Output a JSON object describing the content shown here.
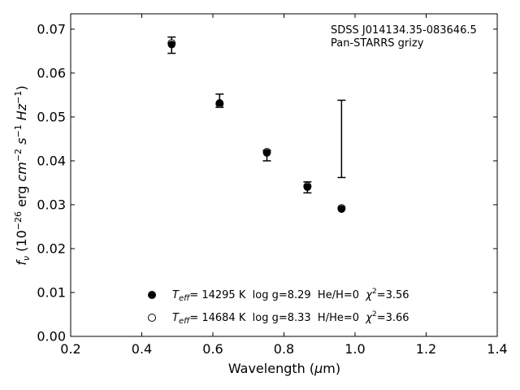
{
  "chart_data": {
    "type": "scatter",
    "title": "",
    "annotation": {
      "line1": "SDSS J014134.35-083646.5",
      "line2": "Pan-STARRS grizy"
    },
    "xlabel": "Wavelength (μm)",
    "ylabel": "f_ν (10^-26 erg cm^-2 s^-1 Hz^-1)",
    "xlim": [
      0.2,
      1.4
    ],
    "ylim": [
      0.0,
      0.0735
    ],
    "xticks": [
      "0.2",
      "0.4",
      "0.6",
      "0.8",
      "1.0",
      "1.2",
      "1.4"
    ],
    "yticks": [
      "0.00",
      "0.01",
      "0.02",
      "0.03",
      "0.04",
      "0.05",
      "0.06",
      "0.07"
    ],
    "observed": {
      "x": [
        0.484,
        0.619,
        0.752,
        0.866,
        0.962
      ],
      "y": [
        0.0663,
        0.0536,
        0.0412,
        0.034,
        0.045
      ],
      "yerr_low": [
        0.0645,
        0.0522,
        0.04,
        0.0327,
        0.0362
      ],
      "yerr_high": [
        0.0682,
        0.0552,
        0.0424,
        0.0352,
        0.0538
      ]
    },
    "series": [
      {
        "name": "He/H=0 model",
        "marker": "filled-circle",
        "color": "#000000",
        "x": [
          0.484,
          0.619,
          0.752,
          0.866,
          0.962
        ],
        "y": [
          0.0665,
          0.0532,
          0.0418,
          0.034,
          0.029
        ]
      },
      {
        "name": "H/He=0 model",
        "marker": "open-circle",
        "color": "#000000",
        "x": [
          0.484,
          0.619,
          0.752,
          0.866,
          0.962
        ],
        "y": [
          0.0668,
          0.053,
          0.042,
          0.0342,
          0.0292
        ]
      }
    ],
    "legend": {
      "placement": "lower-center",
      "entries": [
        {
          "teff_symbol": "T",
          "teff_sub": "eff",
          "text_main": "= 14295 K  log g=8.29  He/H=0  ",
          "chi_symbol": "χ",
          "chi_sup": "2",
          "chi_value": "=3.56"
        },
        {
          "teff_symbol": "T",
          "teff_sub": "eff",
          "text_main": "= 14684 K  log g=8.33  H/He=0  ",
          "chi_symbol": "χ",
          "chi_sup": "2",
          "chi_value": "=3.66"
        }
      ]
    }
  }
}
